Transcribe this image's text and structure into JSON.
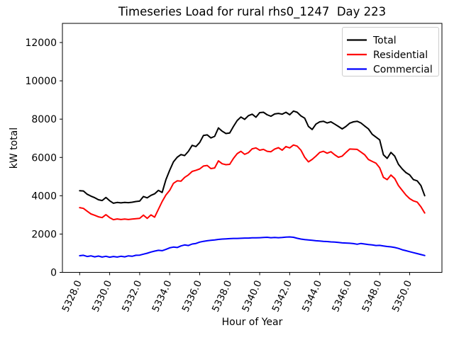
{
  "chart_data": {
    "type": "line",
    "title": "Timeseries Load for rural rhs0_1247  Day 223",
    "xlabel": "Hour of Year",
    "ylabel": "kW total",
    "grid": false,
    "legend_position": "upper right",
    "xlim": [
      5326.85,
      5352.15
    ],
    "ylim": [
      0,
      13000
    ],
    "x_ticks": [
      5328,
      5330,
      5332,
      5334,
      5336,
      5338,
      5340,
      5342,
      5344,
      5346,
      5348,
      5350
    ],
    "x_tick_labels": [
      "5328.0",
      "5330.0",
      "5332.0",
      "5334.0",
      "5336.0",
      "5338.0",
      "5340.0",
      "5342.0",
      "5344.0",
      "5346.0",
      "5348.0",
      "5350.0"
    ],
    "x_tick_rotation_deg": 65,
    "y_ticks": [
      0,
      2000,
      4000,
      6000,
      8000,
      10000,
      12000
    ],
    "y_tick_labels": [
      "0",
      "2000",
      "4000",
      "6000",
      "8000",
      "10000",
      "12000"
    ],
    "x_start": 5328.0,
    "x_step": 0.25,
    "x_end": 5351.0,
    "series": [
      {
        "name": "Total",
        "color": "#000000",
        "values": [
          4260,
          4250,
          4080,
          3980,
          3900,
          3790,
          3750,
          3910,
          3740,
          3610,
          3650,
          3630,
          3650,
          3640,
          3660,
          3700,
          3720,
          3960,
          3890,
          4020,
          4100,
          4280,
          4170,
          4840,
          5330,
          5770,
          6010,
          6150,
          6100,
          6320,
          6630,
          6570,
          6780,
          7150,
          7180,
          7020,
          7100,
          7540,
          7370,
          7250,
          7280,
          7620,
          7930,
          8110,
          7990,
          8180,
          8260,
          8100,
          8340,
          8360,
          8230,
          8150,
          8270,
          8300,
          8260,
          8360,
          8230,
          8420,
          8360,
          8170,
          8050,
          7620,
          7460,
          7740,
          7860,
          7890,
          7800,
          7860,
          7740,
          7620,
          7490,
          7620,
          7790,
          7860,
          7890,
          7800,
          7640,
          7490,
          7210,
          7060,
          6920,
          6140,
          5950,
          6260,
          6070,
          5640,
          5400,
          5210,
          5090,
          4840,
          4780,
          4530,
          4000
        ]
      },
      {
        "name": "Residential",
        "color": "#ff0000",
        "values": [
          3380,
          3340,
          3190,
          3050,
          2980,
          2900,
          2860,
          3010,
          2860,
          2750,
          2790,
          2760,
          2780,
          2760,
          2780,
          2800,
          2820,
          2990,
          2820,
          3000,
          2880,
          3290,
          3700,
          4040,
          4280,
          4650,
          4780,
          4760,
          4960,
          5090,
          5270,
          5330,
          5400,
          5550,
          5580,
          5420,
          5450,
          5820,
          5670,
          5620,
          5640,
          5950,
          6200,
          6320,
          6160,
          6250,
          6450,
          6500,
          6380,
          6420,
          6320,
          6300,
          6440,
          6510,
          6380,
          6570,
          6500,
          6650,
          6590,
          6380,
          6010,
          5770,
          5900,
          6070,
          6260,
          6320,
          6220,
          6300,
          6140,
          6010,
          6070,
          6260,
          6440,
          6430,
          6420,
          6280,
          6140,
          5890,
          5790,
          5700,
          5460,
          4960,
          4840,
          5080,
          4900,
          4530,
          4280,
          4040,
          3850,
          3730,
          3670,
          3420,
          3100
        ]
      },
      {
        "name": "Commercial",
        "color": "#0000ff",
        "values": [
          870,
          890,
          830,
          860,
          810,
          850,
          800,
          840,
          790,
          830,
          800,
          840,
          810,
          860,
          840,
          890,
          900,
          950,
          1000,
          1060,
          1110,
          1150,
          1130,
          1200,
          1280,
          1320,
          1300,
          1380,
          1430,
          1400,
          1480,
          1510,
          1580,
          1620,
          1650,
          1670,
          1690,
          1720,
          1740,
          1750,
          1760,
          1770,
          1770,
          1780,
          1790,
          1790,
          1800,
          1800,
          1810,
          1820,
          1830,
          1810,
          1820,
          1810,
          1820,
          1840,
          1850,
          1830,
          1780,
          1740,
          1710,
          1690,
          1670,
          1650,
          1640,
          1620,
          1610,
          1590,
          1580,
          1560,
          1540,
          1530,
          1520,
          1500,
          1470,
          1510,
          1480,
          1450,
          1430,
          1400,
          1410,
          1380,
          1350,
          1330,
          1300,
          1250,
          1180,
          1130,
          1080,
          1030,
          980,
          930,
          880
        ]
      }
    ]
  }
}
